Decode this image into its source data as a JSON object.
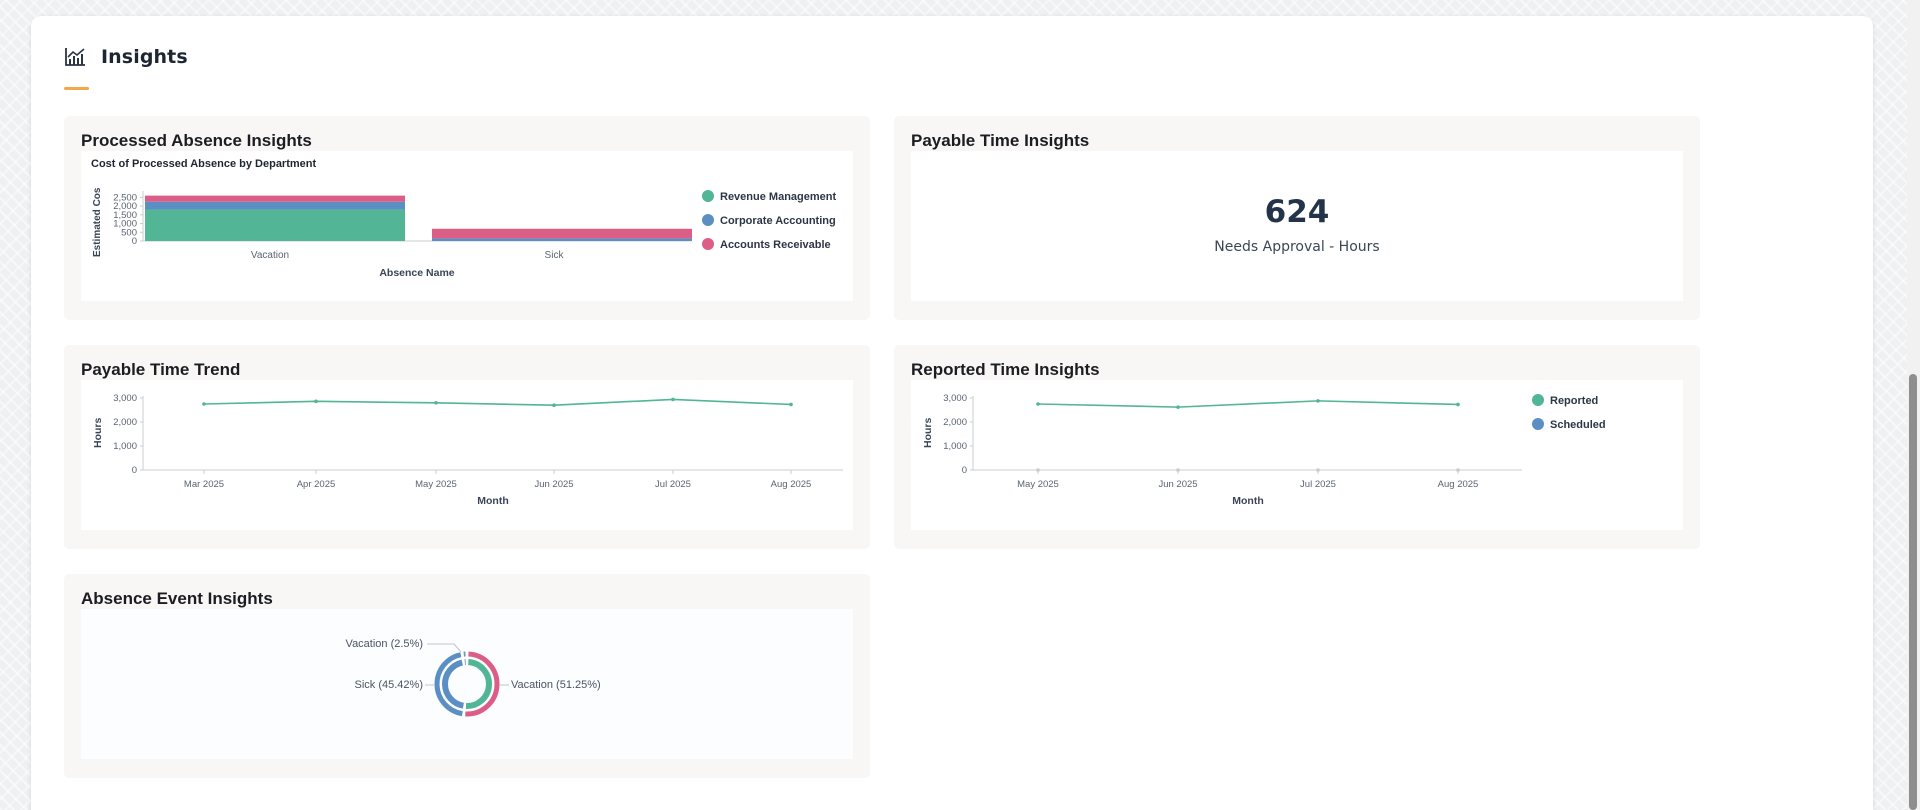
{
  "page": {
    "title": "Insights",
    "icon": "chart-line-icon"
  },
  "colors": {
    "accent_underline": "#f5a54a",
    "green": "#52b596",
    "blue": "#5b8fc4",
    "pink": "#dc5e86",
    "gray_blue": "#7c8fb4"
  },
  "cards": {
    "processed_absence": {
      "title": "Processed Absence Insights",
      "chart_title": "Cost of Processed Absence by Department",
      "ylabel": "Estimated Cos",
      "xlabel": "Absence Name",
      "legend": [
        "Revenue Management",
        "Corporate Accounting",
        "Accounts Receivable"
      ]
    },
    "payable_time": {
      "title": "Payable Time Insights",
      "value": "624",
      "value_label": "Needs Approval - Hours"
    },
    "payable_trend": {
      "title": "Payable Time Trend",
      "ylabel": "Hours",
      "xlabel": "Month"
    },
    "reported_time": {
      "title": "Reported Time Insights",
      "ylabel": "Hours",
      "xlabel": "Month",
      "legend": [
        "Reported",
        "Scheduled"
      ]
    },
    "absence_event": {
      "title": "Absence Event Insights"
    }
  },
  "chart_data": [
    {
      "type": "bar",
      "title": "Cost of Processed Absence by Department",
      "xlabel": "Absence Name",
      "ylabel": "Estimated Cos",
      "categories": [
        "Vacation",
        "Sick"
      ],
      "ylim": [
        0,
        2750
      ],
      "yticks": [
        "0",
        "500",
        "1,000",
        "1,500",
        "2,000",
        "2,500"
      ],
      "stacked": true,
      "series": [
        {
          "name": "Revenue Management",
          "color": "#52b596",
          "values": [
            1800,
            0
          ]
        },
        {
          "name": "Corporate Accounting",
          "color": "#5b8fc4",
          "values": [
            450,
            150
          ]
        },
        {
          "name": "Accounts Receivable",
          "color": "#dc5e86",
          "values": [
            350,
            550
          ]
        }
      ],
      "legend_position": "right"
    },
    {
      "type": "line",
      "title": "",
      "xlabel": "Month",
      "ylabel": "Hours",
      "x": [
        "Mar 2025",
        "Apr 2025",
        "May 2025",
        "Jun 2025",
        "Jul 2025",
        "Aug 2025"
      ],
      "ylim": [
        0,
        3000
      ],
      "yticks": [
        "0",
        "1,000",
        "2,000",
        "3,000"
      ],
      "series": [
        {
          "values": [
            2750,
            2860,
            2800,
            2700,
            2940,
            2730
          ],
          "color": "#52b596"
        }
      ]
    },
    {
      "type": "line",
      "title": "",
      "xlabel": "Month",
      "ylabel": "Hours",
      "x": [
        "May 2025",
        "Jun 2025",
        "Jul 2025",
        "Aug 2025"
      ],
      "ylim": [
        0,
        3000
      ],
      "yticks": [
        "0",
        "1,000",
        "2,000",
        "3,000"
      ],
      "series": [
        {
          "name": "Reported",
          "color": "#52b596",
          "values": [
            2750,
            2620,
            2880,
            2730
          ]
        },
        {
          "name": "Scheduled",
          "color": "#5b8fc4",
          "values": [
            0,
            0,
            0,
            0
          ]
        }
      ],
      "legend_position": "right"
    },
    {
      "type": "pie",
      "title": "",
      "slices": [
        {
          "label": "Vacation (51.25%)",
          "value": 51.25,
          "color": "#dc5e86"
        },
        {
          "label": "Sick (45.42%)",
          "value": 45.42,
          "color": "#5b8fc4"
        },
        {
          "label": "Vacation (2.5%)",
          "value": 2.5,
          "color": "#7c8fb4"
        }
      ],
      "inner_ring": [
        {
          "value": 51.25,
          "color": "#52b596"
        },
        {
          "value": 45.42,
          "color": "#5b8fc4"
        },
        {
          "value": 2.5,
          "color": "#7c8fb4"
        }
      ]
    }
  ]
}
